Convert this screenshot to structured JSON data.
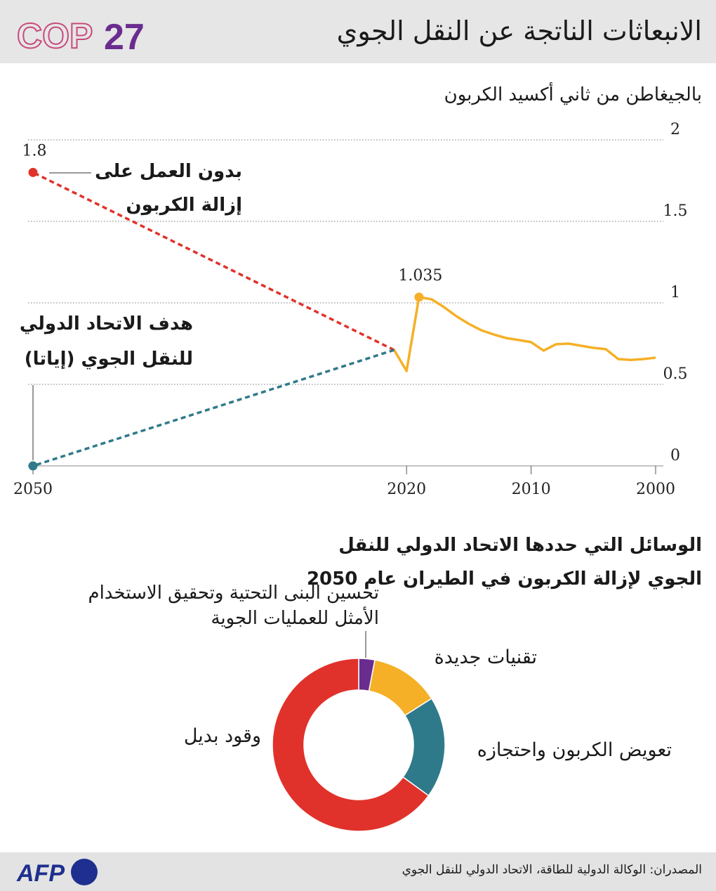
{
  "header": {
    "title": "الانبعاثات الناتجة عن النقل الجوي",
    "logo_text": "COP",
    "logo_number": "27"
  },
  "chart_data": [
    {
      "type": "line",
      "ylabel": "بالجيغاطن من ثاني أكسيد الكربون",
      "xlim": [
        2050,
        2000
      ],
      "xticks": [
        2050,
        2020,
        2010,
        2000
      ],
      "ylim": [
        0,
        2
      ],
      "yticks": [
        0,
        0.5,
        1,
        1.5,
        2
      ],
      "grid": true,
      "series": [
        {
          "color": "#f5b027",
          "style": "solid",
          "x": [
            2000,
            2001,
            2002,
            2003,
            2004,
            2005,
            2006,
            2007,
            2008,
            2009,
            2010,
            2011,
            2012,
            2013,
            2014,
            2015,
            2016,
            2017,
            2018,
            2019,
            2020,
            2021
          ],
          "values": [
            0.664,
            0.655,
            0.65,
            0.655,
            0.716,
            0.724,
            0.737,
            0.75,
            0.746,
            0.707,
            0.759,
            0.772,
            0.784,
            0.806,
            0.832,
            0.871,
            0.918,
            0.974,
            1.022,
            1.035,
            0.582,
            0.711
          ]
        },
        {
          "name": "بدون العمل على إزالة الكربون",
          "color": "#e0322a",
          "style": "dashed",
          "x": [
            2021,
            2050
          ],
          "values": [
            0.711,
            1.8
          ]
        },
        {
          "name": "هدف الاتحاد الدولي للنقل الجوي (إياتا)",
          "color": "#2f7a8a",
          "style": "dashed",
          "x": [
            2021,
            2050
          ],
          "values": [
            0.711,
            0
          ]
        }
      ]
    },
    {
      "type": "pie",
      "title": "الوسائل التي حددها الاتحاد الدولي للنقل الجوي لإزالة الكربون في الطيران عام 2050",
      "categories": [
        "تحسين البنى التحتية وتحقيق الاستخدام الأمثل للعمليات الجوية",
        "تقنيات جديدة",
        "تعويض الكربون واحتجازه",
        "وقود بديل"
      ],
      "values": [
        3,
        13,
        19,
        65
      ],
      "colors": [
        "#6a2d8f",
        "#f5b027",
        "#2f7a8a",
        "#e0322a"
      ],
      "donut": true
    }
  ],
  "footer": {
    "source": "المصدران: الوكالة الدولية للطاقة، الاتحاد الدولي للنقل الجوي",
    "logo": "AFP"
  }
}
